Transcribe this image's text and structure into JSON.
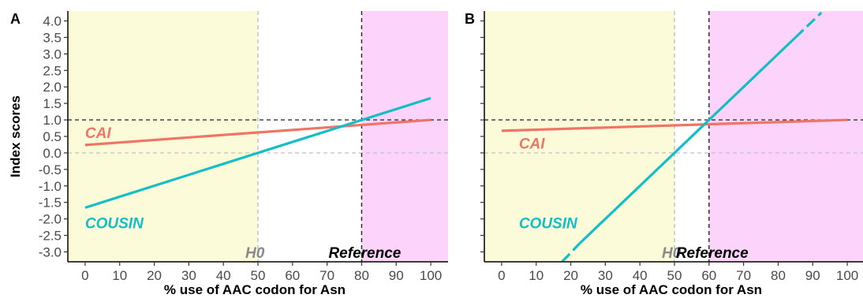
{
  "chart_data": [
    {
      "panel": "A",
      "type": "line",
      "xlabel": "% use of AAC codon for Asn",
      "ylabel": "Index scores",
      "xlim": [
        -5,
        105
      ],
      "ylim": [
        -3.3,
        4.3
      ],
      "x_ticks": [
        0,
        10,
        20,
        30,
        40,
        50,
        60,
        70,
        80,
        90,
        100
      ],
      "y_ticks": [
        -3.0,
        -2.5,
        -2.0,
        -1.5,
        -1.0,
        -0.5,
        0.0,
        0.5,
        1.0,
        1.5,
        2.0,
        2.5,
        3.0,
        3.5,
        4.0
      ],
      "y_tick_labels": [
        "-3.0",
        "-2.5",
        "-2.0",
        "-1.5",
        "-1.0",
        "-0.5",
        "0.0",
        "0.5",
        "1.0",
        "1.5",
        "2.0",
        "2.5",
        "3.0",
        "3.5",
        "4.0"
      ],
      "shaded_regions": [
        {
          "from": -5,
          "to": 50,
          "color": "#fbfbd9"
        },
        {
          "from": 80,
          "to": 105,
          "color": "#fcd3fb"
        }
      ],
      "vlines": [
        {
          "x": 50,
          "color": "#bdbdbd",
          "label": "H0",
          "label_color": "#8a8a8a"
        },
        {
          "x": 80,
          "color": "#222222",
          "label": "Reference",
          "label_color": "#000000"
        }
      ],
      "hlines": [
        {
          "y": 1.0,
          "color": "#333333"
        },
        {
          "y": 0.0,
          "color": "#c6c6c6"
        }
      ],
      "series": [
        {
          "name": "CAI",
          "color": "#f07566",
          "x": [
            0,
            100
          ],
          "y": [
            0.24,
            1.0
          ],
          "label_pos": [
            0,
            0.62
          ]
        },
        {
          "name": "COUSIN",
          "color": "#13bec6",
          "x": [
            0,
            100
          ],
          "y": [
            -1.66,
            1.66
          ],
          "label_pos": [
            0,
            -2.12
          ]
        }
      ]
    },
    {
      "panel": "B",
      "type": "line",
      "xlabel": "% use of AAC codon for Asn",
      "ylabel": "",
      "xlim": [
        -5,
        105
      ],
      "ylim": [
        -3.3,
        4.3
      ],
      "x_ticks": [
        0,
        10,
        20,
        30,
        40,
        50,
        60,
        70,
        80,
        90,
        100
      ],
      "y_ticks": [
        -3.0,
        -2.5,
        -2.0,
        -1.5,
        -1.0,
        -0.5,
        0.0,
        0.5,
        1.0,
        1.5,
        2.0,
        2.5,
        3.0,
        3.5,
        4.0
      ],
      "y_tick_labels": [],
      "shaded_regions": [
        {
          "from": -5,
          "to": 50,
          "color": "#fbfbd9"
        },
        {
          "from": 60,
          "to": 105,
          "color": "#fcd3fb"
        }
      ],
      "vlines": [
        {
          "x": 50,
          "color": "#bdbdbd",
          "label": "H0",
          "label_color": "#8a8a8a"
        },
        {
          "x": 60,
          "color": "#222222",
          "label": "Reference",
          "label_color": "#000000"
        }
      ],
      "hlines": [
        {
          "y": 1.0,
          "color": "#333333"
        },
        {
          "y": 0.0,
          "color": "#c6c6c6"
        }
      ],
      "series": [
        {
          "name": "CAI",
          "color": "#f07566",
          "x": [
            0,
            100
          ],
          "y": [
            0.67,
            1.0
          ],
          "label_pos": [
            5,
            0.3
          ]
        },
        {
          "name": "COUSIN",
          "color": "#13bec6",
          "x": [
            17.5,
            20,
            30,
            40,
            50,
            60,
            70,
            80,
            85,
            92.5
          ],
          "y": [
            -3.3,
            -3.0,
            -2.0,
            -1.0,
            0.0,
            1.0,
            2.0,
            3.0,
            3.5,
            4.25
          ],
          "dashed_segments": [
            [
              17.5,
              22.5
            ],
            [
              85,
              92.5
            ]
          ],
          "label_pos": [
            5,
            -2.12
          ]
        }
      ]
    }
  ]
}
